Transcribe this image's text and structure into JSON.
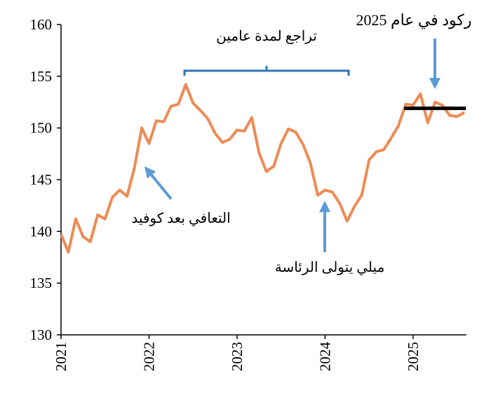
{
  "chart_data": {
    "type": "line",
    "x": [
      2021.0,
      2021.083,
      2021.167,
      2021.25,
      2021.333,
      2021.417,
      2021.5,
      2021.583,
      2021.667,
      2021.75,
      2021.833,
      2021.917,
      2022.0,
      2022.083,
      2022.167,
      2022.25,
      2022.333,
      2022.417,
      2022.5,
      2022.583,
      2022.667,
      2022.75,
      2022.833,
      2022.917,
      2023.0,
      2023.083,
      2023.167,
      2023.25,
      2023.333,
      2023.417,
      2023.5,
      2023.583,
      2023.667,
      2023.75,
      2023.833,
      2023.917,
      2024.0,
      2024.083,
      2024.167,
      2024.25,
      2024.333,
      2024.417,
      2024.5,
      2024.583,
      2024.667,
      2024.75,
      2024.833,
      2024.917,
      2025.0,
      2025.083,
      2025.167,
      2025.25,
      2025.333,
      2025.417,
      2025.5,
      2025.583
    ],
    "series": [
      {
        "color": "#ed8b54",
        "values": [
          139.7,
          138.0,
          141.2,
          139.5,
          139.0,
          141.6,
          141.2,
          143.3,
          144.0,
          143.4,
          146.1,
          150.0,
          148.5,
          150.7,
          150.6,
          152.1,
          152.3,
          154.2,
          152.4,
          151.7,
          150.9,
          149.5,
          148.6,
          148.9,
          149.8,
          149.7,
          151.0,
          147.6,
          145.8,
          146.3,
          148.5,
          149.9,
          149.6,
          148.4,
          146.6,
          143.5,
          144.0,
          143.8,
          142.7,
          141.0,
          142.4,
          143.5,
          146.9,
          147.7,
          147.9,
          149.0,
          150.2,
          152.3,
          152.2,
          153.3,
          150.5,
          152.5,
          152.2,
          151.2,
          151.1,
          151.5
        ]
      }
    ],
    "reference_line": {
      "value": 151.9,
      "x": [
        2024.9,
        2025.6
      ],
      "color": "#000000"
    },
    "xlim": [
      2021,
      2025.75
    ],
    "xticks": [
      2021,
      2022,
      2023,
      2024,
      2025
    ],
    "ylim": [
      130,
      160
    ],
    "yticks": [
      130,
      135,
      140,
      145,
      150,
      155,
      160
    ],
    "annotations": [
      "تراجع لمدة عامين",
      "ركود في عام 2025",
      "التعافي بعد كوفيد",
      "ميلي يتولى الرئاسة"
    ]
  }
}
